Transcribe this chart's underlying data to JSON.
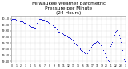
{
  "title": "Milwaukee Weather Barometric\nPressure per Minute\n(24 Hours)",
  "title_fontsize": 4.2,
  "background_color": "#ffffff",
  "plot_bg_color": "#ffffff",
  "text_color": "#000000",
  "grid_color": "#aaaaaa",
  "dot_color": "#0000cc",
  "dot_size": 0.6,
  "ylim": [
    29.38,
    30.15
  ],
  "xlim": [
    0,
    1440
  ],
  "yticks": [
    29.4,
    29.5,
    29.6,
    29.7,
    29.8,
    29.9,
    30.0,
    30.1
  ],
  "ytick_labels": [
    "29.40",
    "29.50",
    "29.60",
    "29.70",
    "29.80",
    "29.90",
    "30.00",
    "30.10"
  ],
  "xtick_positions": [
    0,
    60,
    120,
    180,
    240,
    300,
    360,
    420,
    480,
    540,
    600,
    660,
    720,
    780,
    840,
    900,
    960,
    1020,
    1080,
    1140,
    1200,
    1260,
    1320,
    1380,
    1440
  ],
  "xtick_labels": [
    "0",
    "1",
    "2",
    "3",
    "4",
    "5",
    "6",
    "7",
    "8",
    "9",
    "10",
    "11",
    "12",
    "13",
    "14",
    "15",
    "16",
    "17",
    "18",
    "19",
    "20",
    "21",
    "22",
    "23",
    "3"
  ],
  "pressure_data": [
    [
      0,
      30.08
    ],
    [
      10,
      30.09
    ],
    [
      20,
      30.1
    ],
    [
      30,
      30.1
    ],
    [
      40,
      30.09
    ],
    [
      50,
      30.1
    ],
    [
      60,
      30.08
    ],
    [
      70,
      30.07
    ],
    [
      80,
      30.08
    ],
    [
      90,
      30.07
    ],
    [
      100,
      30.07
    ],
    [
      110,
      30.06
    ],
    [
      120,
      30.05
    ],
    [
      130,
      30.06
    ],
    [
      140,
      30.05
    ],
    [
      150,
      30.04
    ],
    [
      160,
      30.03
    ],
    [
      170,
      30.03
    ],
    [
      180,
      30.02
    ],
    [
      190,
      30.01
    ],
    [
      200,
      30.01
    ],
    [
      210,
      30.0
    ],
    [
      220,
      29.99
    ],
    [
      230,
      29.99
    ],
    [
      240,
      29.98
    ],
    [
      250,
      29.97
    ],
    [
      260,
      29.97
    ],
    [
      270,
      29.96
    ],
    [
      280,
      29.96
    ],
    [
      290,
      29.95
    ],
    [
      300,
      29.95
    ],
    [
      310,
      30.0
    ],
    [
      320,
      30.03
    ],
    [
      330,
      30.05
    ],
    [
      340,
      30.07
    ],
    [
      350,
      30.09
    ],
    [
      360,
      30.09
    ],
    [
      370,
      30.09
    ],
    [
      380,
      30.09
    ],
    [
      390,
      30.08
    ],
    [
      400,
      30.08
    ],
    [
      410,
      30.08
    ],
    [
      420,
      30.07
    ],
    [
      430,
      30.06
    ],
    [
      440,
      30.06
    ],
    [
      450,
      30.05
    ],
    [
      460,
      30.04
    ],
    [
      470,
      30.03
    ],
    [
      480,
      30.02
    ],
    [
      490,
      30.01
    ],
    [
      500,
      30.0
    ],
    [
      510,
      30.0
    ],
    [
      520,
      29.99
    ],
    [
      530,
      29.98
    ],
    [
      540,
      29.97
    ],
    [
      550,
      29.96
    ],
    [
      560,
      29.94
    ],
    [
      570,
      29.92
    ],
    [
      580,
      29.9
    ],
    [
      590,
      29.89
    ],
    [
      600,
      29.88
    ],
    [
      610,
      29.87
    ],
    [
      620,
      29.87
    ],
    [
      630,
      29.87
    ],
    [
      640,
      29.86
    ],
    [
      650,
      29.85
    ],
    [
      660,
      29.84
    ],
    [
      670,
      29.84
    ],
    [
      680,
      29.83
    ],
    [
      690,
      29.82
    ],
    [
      700,
      29.81
    ],
    [
      710,
      29.8
    ],
    [
      720,
      29.79
    ],
    [
      730,
      29.79
    ],
    [
      740,
      29.78
    ],
    [
      750,
      29.77
    ],
    [
      760,
      29.76
    ],
    [
      770,
      29.74
    ],
    [
      780,
      29.72
    ],
    [
      790,
      29.7
    ],
    [
      800,
      29.69
    ],
    [
      810,
      29.68
    ],
    [
      820,
      29.66
    ],
    [
      830,
      29.65
    ],
    [
      840,
      29.63
    ],
    [
      850,
      29.62
    ],
    [
      860,
      29.61
    ],
    [
      870,
      29.6
    ],
    [
      880,
      29.59
    ],
    [
      890,
      29.58
    ],
    [
      900,
      29.57
    ],
    [
      910,
      29.56
    ],
    [
      920,
      29.55
    ],
    [
      930,
      29.53
    ],
    [
      940,
      29.51
    ],
    [
      950,
      29.5
    ],
    [
      960,
      29.54
    ],
    [
      970,
      29.56
    ],
    [
      980,
      29.58
    ],
    [
      990,
      29.6
    ],
    [
      1000,
      29.62
    ],
    [
      1010,
      29.64
    ],
    [
      1020,
      29.66
    ],
    [
      1030,
      29.68
    ],
    [
      1040,
      29.69
    ],
    [
      1050,
      29.7
    ],
    [
      1060,
      29.71
    ],
    [
      1070,
      29.72
    ],
    [
      1080,
      29.73
    ],
    [
      1090,
      29.73
    ],
    [
      1100,
      29.72
    ],
    [
      1110,
      29.71
    ],
    [
      1120,
      29.69
    ],
    [
      1130,
      29.67
    ],
    [
      1140,
      29.64
    ],
    [
      1150,
      29.62
    ],
    [
      1160,
      29.59
    ],
    [
      1170,
      29.56
    ],
    [
      1180,
      29.53
    ],
    [
      1190,
      29.5
    ],
    [
      1200,
      29.47
    ],
    [
      1210,
      29.44
    ],
    [
      1220,
      29.42
    ],
    [
      1230,
      29.4
    ],
    [
      1240,
      29.55
    ],
    [
      1250,
      29.65
    ],
    [
      1260,
      29.68
    ],
    [
      1270,
      29.72
    ],
    [
      1280,
      29.75
    ],
    [
      1290,
      29.8
    ],
    [
      1300,
      29.84
    ],
    [
      1310,
      29.88
    ],
    [
      1320,
      29.9
    ],
    [
      1330,
      29.91
    ],
    [
      1340,
      29.89
    ],
    [
      1350,
      29.87
    ],
    [
      1360,
      29.83
    ],
    [
      1370,
      29.78
    ],
    [
      1380,
      29.72
    ],
    [
      1390,
      29.66
    ],
    [
      1400,
      29.58
    ],
    [
      1410,
      29.5
    ],
    [
      1420,
      29.43
    ],
    [
      1430,
      29.41
    ],
    [
      1440,
      29.4
    ]
  ]
}
